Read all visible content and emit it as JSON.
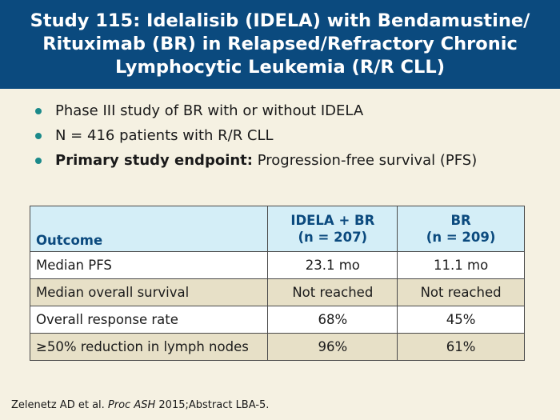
{
  "slide": {
    "title_line1": "Study 115: Idelalisib (IDELA) with Bendamustine/",
    "title_line2": "Rituximab (BR) in Relapsed/Refractory Chronic",
    "title_line3": "Lymphocytic Leukemia (R/R CLL)"
  },
  "bullets": {
    "b1": "Phase III study of BR with or without IDELA",
    "b2": "N = 416 patients with R/R CLL",
    "b3_bold": "Primary study endpoint:",
    "b3_text": " Progression-free survival (PFS)"
  },
  "table": {
    "headers": {
      "outcome": "Outcome",
      "col1_line1": "IDELA + BR",
      "col1_line2": "(n = 207)",
      "col2_line1": "BR",
      "col2_line2": "(n = 209)"
    },
    "rows": [
      {
        "label": "Median PFS",
        "idela_br": "23.1 mo",
        "br": "11.1 mo"
      },
      {
        "label": "Median overall survival",
        "idela_br": "Not reached",
        "br": "Not reached"
      },
      {
        "label": "Overall response rate",
        "idela_br": "68%",
        "br": "45%"
      },
      {
        "label": "≥50% reduction in lymph nodes",
        "idela_br": "96%",
        "br": "61%"
      }
    ]
  },
  "footnote": {
    "authors": "Zelenetz AD et al. ",
    "journal": "Proc ASH",
    "rest": " 2015;Abstract LBA-5."
  },
  "colors": {
    "header_bg": "#0b4a7e",
    "bullet_dot": "#1b8a8a",
    "table_header_bg": "#d4eef7",
    "row_alt_bg": "#e7e0c7",
    "page_bg": "#f5f1e2"
  }
}
